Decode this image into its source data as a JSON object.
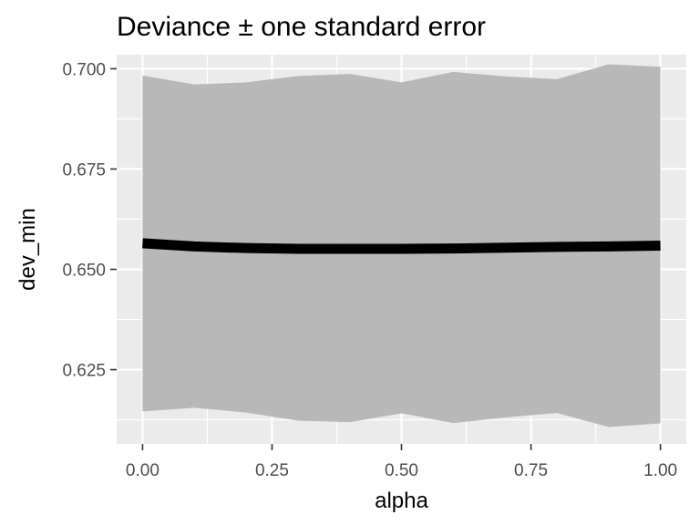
{
  "chart_data": {
    "type": "line",
    "title": "Deviance ± one standard error",
    "xlabel": "alpha",
    "ylabel": "dev_min",
    "xlim": [
      -0.05,
      1.05
    ],
    "ylim": [
      0.6065,
      0.7035
    ],
    "x_ticks": [
      0.0,
      0.25,
      0.5,
      0.75,
      1.0
    ],
    "x_tick_labels": [
      "0.00",
      "0.25",
      "0.50",
      "0.75",
      "1.00"
    ],
    "y_ticks": [
      0.625,
      0.65,
      0.675,
      0.7
    ],
    "y_tick_labels": [
      "0.625",
      "0.650",
      "0.675",
      "0.700"
    ],
    "grid": true,
    "legend": "none",
    "colors": {
      "panel_background": "#ebebeb",
      "grid": "#ffffff",
      "ribbon": "#b3b3b3",
      "line": "#000000",
      "tick_text": "#4d4d4d",
      "tick_mark": "#333333"
    },
    "series": [
      {
        "x": [
          0.0,
          0.1,
          0.2,
          0.3,
          0.4,
          0.5,
          0.6,
          0.7,
          0.8,
          0.9,
          1.0
        ],
        "values": [
          0.6565,
          0.6557,
          0.6553,
          0.6551,
          0.6551,
          0.6551,
          0.6552,
          0.6554,
          0.6556,
          0.6557,
          0.6559
        ],
        "upper": [
          0.6983,
          0.6961,
          0.6966,
          0.6982,
          0.6987,
          0.6966,
          0.6992,
          0.6981,
          0.6974,
          0.7011,
          0.7005
        ],
        "lower": [
          0.6146,
          0.6155,
          0.6143,
          0.6123,
          0.6119,
          0.6141,
          0.6117,
          0.6131,
          0.6142,
          0.6107,
          0.6116
        ]
      }
    ]
  }
}
